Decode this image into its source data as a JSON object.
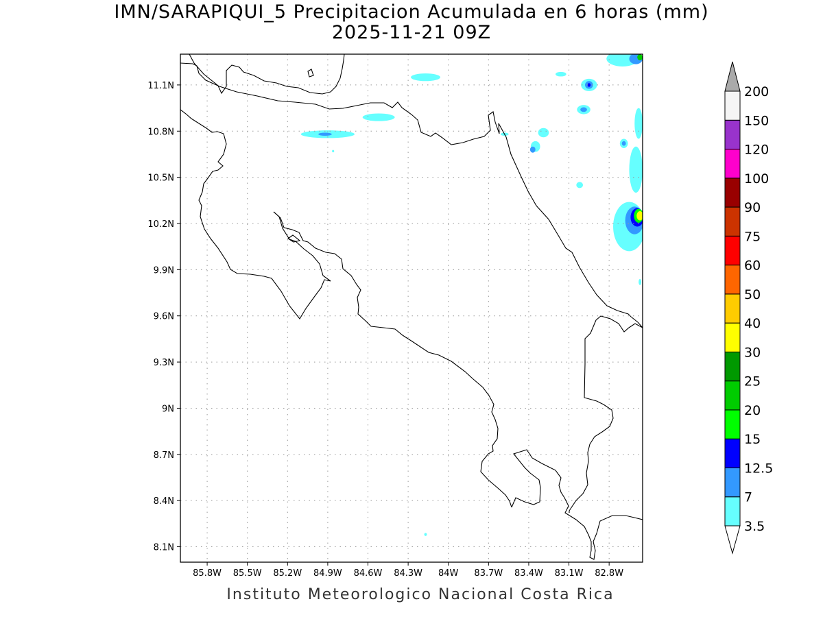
{
  "title": {
    "line1": "IMN/SARAPIQUI_5 Precipitacion Acumulada en 6 horas (mm)",
    "line2": "2025-11-21 09Z"
  },
  "footer": "Instituto Meteorologico Nacional Costa Rica",
  "map": {
    "lon_range": [
      -86.0,
      -82.55
    ],
    "lat_range": [
      8.0,
      11.3
    ],
    "lon_ticks": [
      {
        "value": -85.8,
        "label": "85.8W"
      },
      {
        "value": -85.5,
        "label": "85.5W"
      },
      {
        "value": -85.2,
        "label": "85.2W"
      },
      {
        "value": -84.9,
        "label": "84.9W"
      },
      {
        "value": -84.6,
        "label": "84.6W"
      },
      {
        "value": -84.3,
        "label": "84.3W"
      },
      {
        "value": -84.0,
        "label": "84W"
      },
      {
        "value": -83.7,
        "label": "83.7W"
      },
      {
        "value": -83.4,
        "label": "83.4W"
      },
      {
        "value": -83.1,
        "label": "83.1W"
      },
      {
        "value": -82.8,
        "label": "82.8W"
      }
    ],
    "lat_ticks": [
      {
        "value": 8.1,
        "label": "8.1N"
      },
      {
        "value": 8.4,
        "label": "8.4N"
      },
      {
        "value": 8.7,
        "label": "8.7N"
      },
      {
        "value": 9.0,
        "label": "9N"
      },
      {
        "value": 9.3,
        "label": "9.3N"
      },
      {
        "value": 9.6,
        "label": "9.6N"
      },
      {
        "value": 9.9,
        "label": "9.9N"
      },
      {
        "value": 10.2,
        "label": "10.2N"
      },
      {
        "value": 10.5,
        "label": "10.5N"
      },
      {
        "value": 10.8,
        "label": "10.8N"
      },
      {
        "value": 11.1,
        "label": "11.1N"
      }
    ],
    "grid": "dotted"
  },
  "legend": {
    "levels": [
      {
        "label": "3.5",
        "color": "#66ffff"
      },
      {
        "label": "7",
        "color": "#3399ff"
      },
      {
        "label": "12.5",
        "color": "#0000ff"
      },
      {
        "label": "15",
        "color": "#00ff00"
      },
      {
        "label": "20",
        "color": "#00cc00"
      },
      {
        "label": "25",
        "color": "#009900"
      },
      {
        "label": "30",
        "color": "#ffff00"
      },
      {
        "label": "40",
        "color": "#ffcc00"
      },
      {
        "label": "50",
        "color": "#ff6600"
      },
      {
        "label": "60",
        "color": "#ff0000"
      },
      {
        "label": "75",
        "color": "#cc3300"
      },
      {
        "label": "90",
        "color": "#990000"
      },
      {
        "label": "100",
        "color": "#ff00cc"
      },
      {
        "label": "120",
        "color": "#9933cc"
      },
      {
        "label": "150",
        "color": "#f5f5f5"
      },
      {
        "label": "200",
        "color": "#aaaaaa"
      }
    ]
  },
  "precip_cells": [
    {
      "lon": -84.9,
      "lat": 10.78,
      "rx": 0.2,
      "ry": 0.025,
      "level": 0
    },
    {
      "lon": -84.92,
      "lat": 10.78,
      "rx": 0.05,
      "ry": 0.01,
      "level": 1
    },
    {
      "lon": -84.52,
      "lat": 10.89,
      "rx": 0.12,
      "ry": 0.025,
      "level": 0
    },
    {
      "lon": -84.17,
      "lat": 11.15,
      "rx": 0.11,
      "ry": 0.025,
      "level": 0
    },
    {
      "lon": -83.29,
      "lat": 10.79,
      "rx": 0.04,
      "ry": 0.03,
      "level": 0
    },
    {
      "lon": -83.35,
      "lat": 10.7,
      "rx": 0.035,
      "ry": 0.035,
      "level": 0
    },
    {
      "lon": -83.37,
      "lat": 10.68,
      "rx": 0.02,
      "ry": 0.02,
      "level": 1
    },
    {
      "lon": -83.16,
      "lat": 11.17,
      "rx": 0.04,
      "ry": 0.015,
      "level": 0
    },
    {
      "lon": -83.58,
      "lat": 10.78,
      "rx": 0.03,
      "ry": 0.01,
      "level": 0
    },
    {
      "lon": -82.95,
      "lat": 11.1,
      "rx": 0.06,
      "ry": 0.04,
      "level": 0
    },
    {
      "lon": -82.95,
      "lat": 11.1,
      "rx": 0.03,
      "ry": 0.025,
      "level": 1
    },
    {
      "lon": -82.95,
      "lat": 11.1,
      "rx": 0.012,
      "ry": 0.012,
      "level": 2
    },
    {
      "lon": -82.99,
      "lat": 10.94,
      "rx": 0.05,
      "ry": 0.03,
      "level": 0
    },
    {
      "lon": -82.99,
      "lat": 10.94,
      "rx": 0.025,
      "ry": 0.015,
      "level": 1
    },
    {
      "lon": -82.7,
      "lat": 11.27,
      "rx": 0.12,
      "ry": 0.05,
      "level": 0
    },
    {
      "lon": -82.6,
      "lat": 11.27,
      "rx": 0.05,
      "ry": 0.035,
      "level": 1
    },
    {
      "lon": -82.57,
      "lat": 11.28,
      "rx": 0.02,
      "ry": 0.02,
      "level": 4
    },
    {
      "lon": -82.69,
      "lat": 10.72,
      "rx": 0.03,
      "ry": 0.03,
      "level": 0
    },
    {
      "lon": -82.69,
      "lat": 10.72,
      "rx": 0.015,
      "ry": 0.015,
      "level": 1
    },
    {
      "lon": -82.6,
      "lat": 10.55,
      "rx": 0.05,
      "ry": 0.15,
      "level": 0
    },
    {
      "lon": -82.58,
      "lat": 10.85,
      "rx": 0.03,
      "ry": 0.1,
      "level": 0
    },
    {
      "lon": -83.02,
      "lat": 10.45,
      "rx": 0.025,
      "ry": 0.02,
      "level": 0
    },
    {
      "lon": -82.65,
      "lat": 10.18,
      "rx": 0.12,
      "ry": 0.16,
      "level": 0
    },
    {
      "lon": -82.61,
      "lat": 10.22,
      "rx": 0.07,
      "ry": 0.09,
      "level": 1
    },
    {
      "lon": -82.59,
      "lat": 10.24,
      "rx": 0.05,
      "ry": 0.06,
      "level": 2
    },
    {
      "lon": -82.58,
      "lat": 10.25,
      "rx": 0.035,
      "ry": 0.045,
      "level": 3
    },
    {
      "lon": -82.57,
      "lat": 10.25,
      "rx": 0.025,
      "ry": 0.03,
      "level": 6
    },
    {
      "lon": -82.57,
      "lat": 9.82,
      "rx": 0.01,
      "ry": 0.02,
      "level": 0
    },
    {
      "lon": -84.17,
      "lat": 8.18,
      "rx": 0.01,
      "ry": 0.01,
      "level": 0
    },
    {
      "lon": -84.86,
      "lat": 10.67,
      "rx": 0.008,
      "ry": 0.008,
      "level": 0
    }
  ]
}
